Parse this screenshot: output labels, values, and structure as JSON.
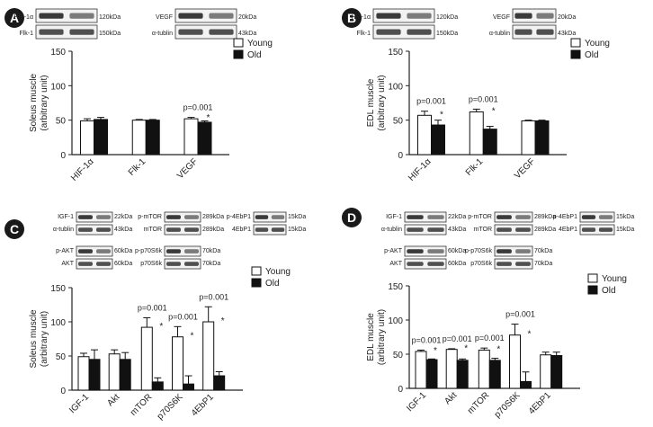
{
  "chart_data": [
    {
      "panel": "A",
      "type": "bar",
      "ylabel_lines": [
        "Soleus muscle",
        "(arbitrary unit)"
      ],
      "ylim": [
        0,
        150
      ],
      "yticks": [
        "0",
        "50",
        "100",
        "150"
      ],
      "categories": [
        "HIF-1α",
        "Flk-1",
        "VEGF"
      ],
      "series": [
        {
          "name": "Young",
          "color": "#ffffff",
          "values": [
            49,
            50,
            52
          ],
          "errors": [
            3,
            1,
            2
          ]
        },
        {
          "name": "Old",
          "color": "#111111",
          "values": [
            51,
            50,
            47
          ],
          "errors": [
            3,
            1,
            2
          ]
        }
      ],
      "annotations": [
        {
          "category": 2,
          "label": "p=0.001",
          "star": "*"
        }
      ],
      "blots": {
        "rows": [
          {
            "groups": [
              {
                "protein": "HIF-1α",
                "size": "120kDa"
              },
              {
                "protein": "VEGF",
                "size": "20kDa"
              }
            ]
          },
          {
            "groups": [
              {
                "protein": "Flk-1",
                "size": "150kDa"
              },
              {
                "protein": "α-tublin",
                "size": "43kDa"
              }
            ]
          }
        ]
      },
      "legend_position": "top-right"
    },
    {
      "panel": "B",
      "type": "bar",
      "ylabel_lines": [
        "EDL muscle",
        "(arbitrary unit)"
      ],
      "ylim": [
        0,
        150
      ],
      "yticks": [
        "0",
        "50",
        "100",
        "150"
      ],
      "categories": [
        "HIF-1α",
        "Flk-1",
        "VEGF"
      ],
      "series": [
        {
          "name": "Young",
          "color": "#ffffff",
          "values": [
            57,
            62,
            49
          ],
          "errors": [
            6,
            4,
            1
          ]
        },
        {
          "name": "Old",
          "color": "#111111",
          "values": [
            43,
            37,
            49
          ],
          "errors": [
            7,
            4,
            1
          ]
        }
      ],
      "annotations": [
        {
          "category": 0,
          "label": "p=0.001",
          "star": "*"
        },
        {
          "category": 1,
          "label": "p=0.001",
          "star": "*"
        }
      ],
      "blots": {
        "rows": [
          {
            "groups": [
              {
                "protein": "HIF-1α",
                "size": "120kDa"
              },
              {
                "protein": "VEGF",
                "size": "20kDa"
              }
            ]
          },
          {
            "groups": [
              {
                "protein": "Flk-1",
                "size": "150kDa"
              },
              {
                "protein": "α-tublin",
                "size": "43kDa"
              }
            ]
          }
        ]
      },
      "legend_position": "top-right"
    },
    {
      "panel": "C",
      "type": "bar",
      "ylabel_lines": [
        "Soleus muscle",
        "(arbitrary unit)"
      ],
      "ylim": [
        0,
        150
      ],
      "yticks": [
        "0",
        "50",
        "100",
        "150"
      ],
      "categories": [
        "IGF-1",
        "Akt",
        "mTOR",
        "p70S6K",
        "4EbP1"
      ],
      "series": [
        {
          "name": "Young",
          "color": "#ffffff",
          "values": [
            49,
            53,
            92,
            78,
            100
          ],
          "errors": [
            5,
            6,
            14,
            15,
            22
          ]
        },
        {
          "name": "Old",
          "color": "#111111",
          "values": [
            45,
            45,
            12,
            9,
            21
          ],
          "errors": [
            14,
            10,
            6,
            12,
            6
          ]
        }
      ],
      "annotations": [
        {
          "category": 2,
          "label": "p=0.001",
          "star": "*"
        },
        {
          "category": 3,
          "label": "p=0.001",
          "star": "*"
        },
        {
          "category": 4,
          "label": "p=0.001",
          "star": "*"
        }
      ],
      "blots": {
        "rows": [
          {
            "groups": [
              {
                "protein": "IGF-1",
                "size": "22kDa"
              },
              {
                "protein": "p-mTOR",
                "size": "289kDa"
              },
              {
                "protein": "p-4EbP1",
                "size": "15kDa"
              }
            ]
          },
          {
            "groups": [
              {
                "protein": "α-tublin",
                "size": "43kDa"
              },
              {
                "protein": "mTOR",
                "size": "289kDa"
              },
              {
                "protein": "4EbP1",
                "size": "15kDa"
              }
            ]
          },
          {
            "groups": [
              {
                "protein": "p-AKT",
                "size": "60kDa"
              },
              {
                "protein": "p-p70S6k",
                "size": "70kDa"
              }
            ]
          },
          {
            "groups": [
              {
                "protein": "AKT",
                "size": "60kDa"
              },
              {
                "protein": "p70S6k",
                "size": "70kDa"
              }
            ]
          }
        ]
      },
      "legend_position": "top-right"
    },
    {
      "panel": "D",
      "type": "bar",
      "ylabel_lines": [
        "EDL muscle",
        "(arbitrary unit)"
      ],
      "ylim": [
        0,
        150
      ],
      "yticks": [
        "0",
        "50",
        "100",
        "150"
      ],
      "categories": [
        "IGF-1",
        "Akt",
        "mTOR",
        "p70S6K",
        "4EbP1"
      ],
      "series": [
        {
          "name": "Young",
          "color": "#ffffff",
          "values": [
            54,
            57,
            56,
            78,
            49
          ],
          "errors": [
            2,
            1,
            3,
            16,
            4
          ]
        },
        {
          "name": "Old",
          "color": "#111111",
          "values": [
            42,
            41,
            41,
            10,
            48
          ],
          "errors": [
            1,
            2,
            3,
            14,
            5
          ]
        }
      ],
      "annotations": [
        {
          "category": 0,
          "label": "p=0.001",
          "star": "*"
        },
        {
          "category": 1,
          "label": "p=0.001",
          "star": "*"
        },
        {
          "category": 2,
          "label": "p=0.001",
          "star": "*"
        },
        {
          "category": 3,
          "label": "p=0.001",
          "star": "*"
        }
      ],
      "blots": {
        "rows": [
          {
            "groups": [
              {
                "protein": "IGF-1",
                "size": "22kDa"
              },
              {
                "protein": "p-mTOR",
                "size": "289kDa"
              },
              {
                "protein": "p-4EbP1",
                "size": "15kDa"
              }
            ]
          },
          {
            "groups": [
              {
                "protein": "α-tublin",
                "size": "43kDa"
              },
              {
                "protein": "mTOR",
                "size": "289kDa"
              },
              {
                "protein": "4EbP1",
                "size": "15kDa"
              }
            ]
          },
          {
            "groups": [
              {
                "protein": "p-AKT",
                "size": "60kDa"
              },
              {
                "protein": "p-p70S6k",
                "size": "70kDa"
              }
            ]
          },
          {
            "groups": [
              {
                "protein": "AKT",
                "size": "60kDa"
              },
              {
                "protein": "p70S6k",
                "size": "70kDa"
              }
            ]
          }
        ]
      },
      "legend_position": "top-right"
    }
  ]
}
